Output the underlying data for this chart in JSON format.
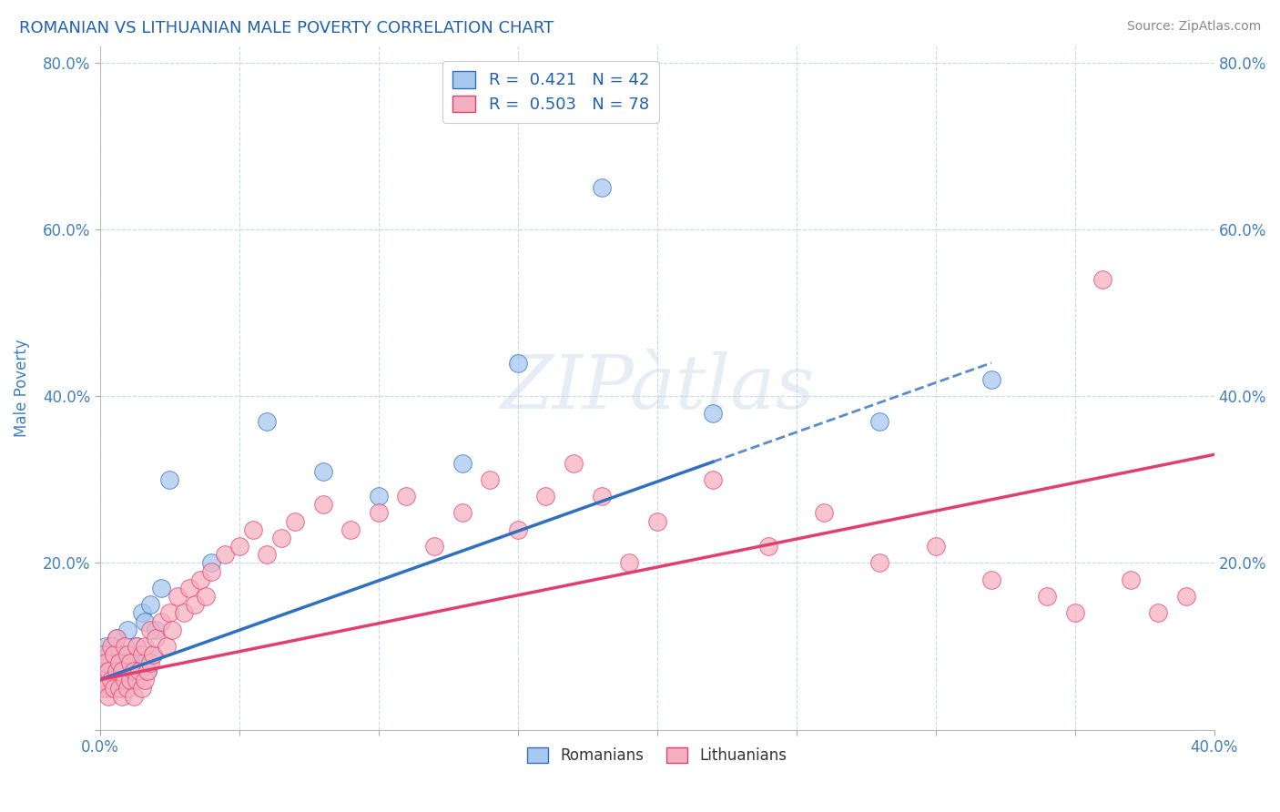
{
  "title": "ROMANIAN VS LITHUANIAN MALE POVERTY CORRELATION CHART",
  "source": "Source: ZipAtlas.com",
  "ylabel": "Male Poverty",
  "xlim": [
    0.0,
    0.4
  ],
  "ylim": [
    0.0,
    0.82
  ],
  "xticks": [
    0.0,
    0.05,
    0.1,
    0.15,
    0.2,
    0.25,
    0.3,
    0.35,
    0.4
  ],
  "yticks": [
    0.0,
    0.2,
    0.4,
    0.6,
    0.8
  ],
  "legend_r1": "R =  0.421",
  "legend_n1": "N = 42",
  "legend_r2": "R =  0.503",
  "legend_n2": "N = 78",
  "romanian_color": "#a8c8f0",
  "lithuanian_color": "#f5b0c0",
  "romanian_line_color": "#3070c0",
  "lithuanian_line_color": "#e04070",
  "title_color": "#2060b0",
  "label_color": "#4080c0",
  "background_color": "#ffffff",
  "grid_color": "#c8d8e8",
  "romanians_x": [
    0.001,
    0.001,
    0.002,
    0.002,
    0.003,
    0.003,
    0.004,
    0.004,
    0.005,
    0.005,
    0.006,
    0.006,
    0.007,
    0.008,
    0.008,
    0.009,
    0.01,
    0.01,
    0.011,
    0.012,
    0.013,
    0.014,
    0.015,
    0.015,
    0.016,
    0.016,
    0.017,
    0.018,
    0.019,
    0.02,
    0.022,
    0.025,
    0.04,
    0.06,
    0.08,
    0.1,
    0.13,
    0.15,
    0.18,
    0.22,
    0.28,
    0.32
  ],
  "romanians_y": [
    0.05,
    0.08,
    0.06,
    0.1,
    0.07,
    0.09,
    0.05,
    0.08,
    0.06,
    0.1,
    0.07,
    0.11,
    0.06,
    0.08,
    0.05,
    0.09,
    0.07,
    0.12,
    0.08,
    0.06,
    0.1,
    0.07,
    0.09,
    0.14,
    0.08,
    0.13,
    0.07,
    0.15,
    0.09,
    0.12,
    0.17,
    0.3,
    0.2,
    0.37,
    0.31,
    0.28,
    0.32,
    0.44,
    0.65,
    0.38,
    0.37,
    0.42
  ],
  "lithuanians_x": [
    0.001,
    0.001,
    0.002,
    0.002,
    0.003,
    0.003,
    0.004,
    0.004,
    0.005,
    0.005,
    0.006,
    0.006,
    0.007,
    0.007,
    0.008,
    0.008,
    0.009,
    0.009,
    0.01,
    0.01,
    0.011,
    0.011,
    0.012,
    0.012,
    0.013,
    0.013,
    0.014,
    0.015,
    0.015,
    0.016,
    0.016,
    0.017,
    0.018,
    0.018,
    0.019,
    0.02,
    0.022,
    0.024,
    0.025,
    0.026,
    0.028,
    0.03,
    0.032,
    0.034,
    0.036,
    0.038,
    0.04,
    0.045,
    0.05,
    0.055,
    0.06,
    0.065,
    0.07,
    0.08,
    0.09,
    0.1,
    0.11,
    0.12,
    0.13,
    0.14,
    0.15,
    0.16,
    0.17,
    0.18,
    0.19,
    0.2,
    0.22,
    0.24,
    0.26,
    0.28,
    0.3,
    0.32,
    0.34,
    0.35,
    0.36,
    0.37,
    0.38,
    0.39
  ],
  "lithuanians_y": [
    0.06,
    0.09,
    0.05,
    0.08,
    0.04,
    0.07,
    0.06,
    0.1,
    0.05,
    0.09,
    0.07,
    0.11,
    0.05,
    0.08,
    0.04,
    0.07,
    0.06,
    0.1,
    0.05,
    0.09,
    0.06,
    0.08,
    0.04,
    0.07,
    0.06,
    0.1,
    0.07,
    0.05,
    0.09,
    0.06,
    0.1,
    0.07,
    0.08,
    0.12,
    0.09,
    0.11,
    0.13,
    0.1,
    0.14,
    0.12,
    0.16,
    0.14,
    0.17,
    0.15,
    0.18,
    0.16,
    0.19,
    0.21,
    0.22,
    0.24,
    0.21,
    0.23,
    0.25,
    0.27,
    0.24,
    0.26,
    0.28,
    0.22,
    0.26,
    0.3,
    0.24,
    0.28,
    0.32,
    0.28,
    0.2,
    0.25,
    0.3,
    0.22,
    0.26,
    0.2,
    0.22,
    0.18,
    0.16,
    0.14,
    0.54,
    0.18,
    0.14,
    0.16
  ],
  "rom_trend_x": [
    0.0,
    0.32
  ],
  "rom_trend_y": [
    0.06,
    0.44
  ],
  "lit_trend_x": [
    0.0,
    0.4
  ],
  "lit_trend_y": [
    0.06,
    0.33
  ]
}
